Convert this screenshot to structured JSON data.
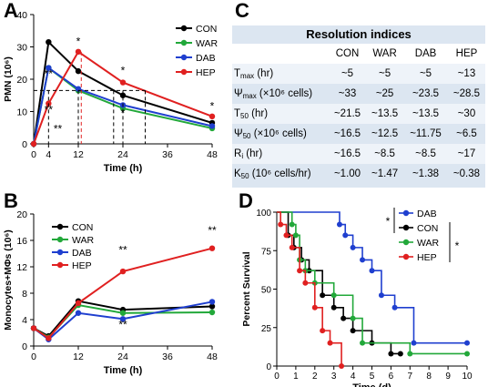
{
  "panels": {
    "a": "A",
    "b": "B",
    "c": "C",
    "d": "D"
  },
  "colors": {
    "CON": "#000000",
    "WAR": "#22a83a",
    "DAB": "#1f3fcf",
    "HEP": "#e02020"
  },
  "chart_data": [
    {
      "id": "A",
      "type": "line",
      "xlabel": "Time (h)",
      "ylabel": "PMN (10⁶)",
      "xlim": [
        0,
        48
      ],
      "ylim": [
        0,
        40
      ],
      "xticks": [
        0,
        4,
        12,
        24,
        36,
        48
      ],
      "yticks": [
        0,
        10,
        20,
        30,
        40
      ],
      "legend_position": "top-right",
      "series": [
        {
          "name": "CON",
          "x": [
            0,
            4,
            12,
            24,
            48
          ],
          "y": [
            0,
            31.5,
            22.5,
            15.0,
            6.5
          ]
        },
        {
          "name": "WAR",
          "x": [
            0,
            4,
            12,
            24,
            48
          ],
          "y": [
            0,
            23.5,
            16.5,
            11.0,
            4.8
          ]
        },
        {
          "name": "DAB",
          "x": [
            0,
            4,
            12,
            24,
            48
          ],
          "y": [
            0,
            23.5,
            17.0,
            12.0,
            5.5
          ]
        },
        {
          "name": "HEP",
          "x": [
            0,
            4,
            12,
            24,
            48
          ],
          "y": [
            0,
            12.5,
            28.5,
            19.0,
            8.5
          ]
        }
      ],
      "annotations": [
        {
          "text": "*",
          "x": 12,
          "y": 30.5
        },
        {
          "text": "*",
          "x": 24,
          "y": 21.5
        },
        {
          "text": "*",
          "x": 24,
          "y": 8.5
        },
        {
          "text": "*",
          "x": 48,
          "y": 10.5
        },
        {
          "text": "**",
          "x": 4,
          "y": 20.5
        },
        {
          "text": "**",
          "x": 4,
          "y": 9.5
        },
        {
          "text": "**",
          "x": 6.5,
          "y": 3.5
        }
      ]
    },
    {
      "id": "B",
      "type": "line",
      "xlabel": "Time (h)",
      "ylabel": "Monocytes+MΦs (10⁶)",
      "xlim": [
        0,
        48
      ],
      "ylim": [
        0,
        20
      ],
      "xticks": [
        0,
        12,
        24,
        36,
        48
      ],
      "yticks": [
        0,
        4,
        8,
        12,
        16,
        20
      ],
      "legend_position": "top-left",
      "series": [
        {
          "name": "CON",
          "x": [
            0,
            4,
            12,
            24,
            48
          ],
          "y": [
            2.7,
            1.5,
            6.8,
            5.5,
            6.0
          ]
        },
        {
          "name": "WAR",
          "x": [
            0,
            4,
            12,
            24,
            48
          ],
          "y": [
            2.7,
            1.3,
            6.2,
            5.0,
            5.1
          ]
        },
        {
          "name": "DAB",
          "x": [
            0,
            4,
            12,
            24,
            48
          ],
          "y": [
            2.7,
            1.0,
            5.0,
            4.1,
            6.7
          ]
        },
        {
          "name": "HEP",
          "x": [
            0,
            4,
            12,
            24,
            48
          ],
          "y": [
            2.7,
            1.2,
            6.5,
            11.3,
            14.8
          ]
        }
      ],
      "annotations": [
        {
          "text": "**",
          "x": 24,
          "y": 14.0
        },
        {
          "text": "**",
          "x": 48,
          "y": 17.0
        },
        {
          "text": "**",
          "x": 24,
          "y": 2.7
        }
      ]
    },
    {
      "id": "C",
      "type": "table",
      "title": "Resolution indices",
      "columns": [
        "",
        "CON",
        "WAR",
        "DAB",
        "HEP"
      ],
      "rows": [
        {
          "label": "T",
          "sub": "max",
          "suffix": " (hr)",
          "values": [
            "~5",
            "~5",
            "~5",
            "~13"
          ]
        },
        {
          "label": "Ψ",
          "sub": "max",
          "suffix": " (×10⁶ cells)",
          "values": [
            "~33",
            "~25",
            "~23.5",
            "~28.5"
          ]
        },
        {
          "label": "T",
          "sub": "50",
          "suffix": " (hr)",
          "values": [
            "~21.5",
            "~13.5",
            "~13.5",
            "~30"
          ]
        },
        {
          "label": "Ψ",
          "sub": "50",
          "suffix": " (×10⁶ cells)",
          "values": [
            "~16.5",
            "~12.5",
            "~11.75",
            "~6.5"
          ]
        },
        {
          "label": "R",
          "sub": "i",
          "suffix": " (hr)",
          "values": [
            "~16.5",
            "~8.5",
            "~8.5",
            "~17"
          ]
        },
        {
          "label": "K",
          "sub": "50",
          "suffix": " (10⁶ cells/hr)",
          "values": [
            "~1.00",
            "~1.47",
            "~1.38",
            "~0.38"
          ]
        }
      ]
    },
    {
      "id": "D",
      "type": "line",
      "subtype": "step",
      "xlabel": "Time (d)",
      "ylabel": "Percent Survival",
      "xlim": [
        0,
        10
      ],
      "ylim": [
        0,
        100
      ],
      "xticks": [
        0,
        1,
        2,
        3,
        4,
        5,
        6,
        7,
        8,
        9,
        10
      ],
      "yticks": [
        0,
        25,
        50,
        75,
        100
      ],
      "legend_position": "right",
      "series": [
        {
          "name": "DAB",
          "x": [
            0,
            3.3,
            3.6,
            4.0,
            4.5,
            5.0,
            5.5,
            6.2,
            7.2,
            10
          ],
          "y": [
            100,
            92,
            85,
            77,
            69,
            62,
            46,
            38,
            15,
            15
          ]
        },
        {
          "name": "CON",
          "x": [
            0,
            0.6,
            0.9,
            1.3,
            1.7,
            2.4,
            3.0,
            3.5,
            4.0,
            5.0,
            6.0,
            6.5
          ],
          "y": [
            100,
            85,
            77,
            69,
            62,
            46,
            38,
            31,
            23,
            15,
            8,
            8
          ]
        },
        {
          "name": "WAR",
          "x": [
            0,
            0.8,
            1.0,
            1.2,
            1.5,
            2.0,
            3.0,
            4.0,
            4.5,
            7.0,
            10
          ],
          "y": [
            100,
            92,
            85,
            69,
            62,
            54,
            46,
            31,
            15,
            8,
            8
          ]
        },
        {
          "name": "HEP",
          "x": [
            0,
            0.2,
            0.5,
            0.8,
            1.2,
            1.5,
            2.0,
            2.4,
            2.8,
            3.4
          ],
          "y": [
            100,
            92,
            85,
            77,
            62,
            54,
            38,
            23,
            15,
            0
          ]
        }
      ],
      "significance": [
        "*",
        "*"
      ]
    }
  ]
}
